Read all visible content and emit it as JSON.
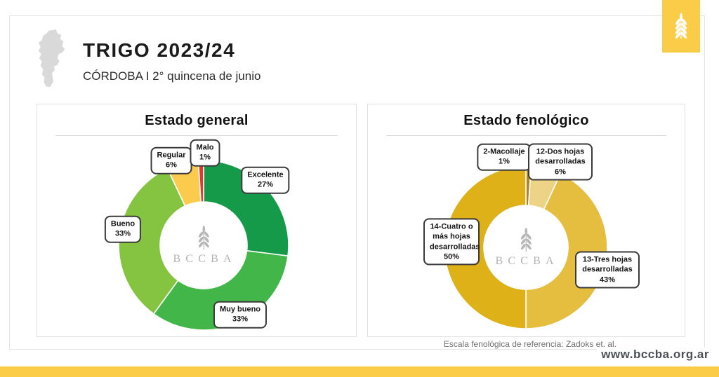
{
  "header": {
    "title": "TRIGO 2023/24",
    "subtitle": "CÓRDOBA I 2° quincena de junio",
    "region_shape": "cordoba-province-silhouette"
  },
  "branding": {
    "accent_yellow": "#FACC48",
    "watermark_text": "BCCBA",
    "logo_icon": "wheat-spike-icon"
  },
  "footer": {
    "reference_note": "Escala fenológica de referencia: Zadoks et. al.",
    "website": "www.bccba.org.ar"
  },
  "chart_data": [
    {
      "type": "pie",
      "variant": "donut",
      "title": "Estado general",
      "unit": "%",
      "start_angle_deg": -90,
      "direction": "clockwise",
      "legend": "callout-labels",
      "slices": [
        {
          "label": "Excelente",
          "value": 27,
          "pct": "27%",
          "color": "#149A49"
        },
        {
          "label": "Muy bueno",
          "value": 33,
          "pct": "33%",
          "color": "#43B649"
        },
        {
          "label": "Bueno",
          "value": 33,
          "pct": "33%",
          "color": "#84C441"
        },
        {
          "label": "Regular",
          "value": 6,
          "pct": "6%",
          "color": "#FBCB4D"
        },
        {
          "label": "Malo",
          "value": 1,
          "pct": "1%",
          "color": "#E0392E"
        }
      ]
    },
    {
      "type": "pie",
      "variant": "donut",
      "title": "Estado fenológico",
      "unit": "%",
      "start_angle_deg": -90,
      "direction": "clockwise",
      "legend": "callout-labels",
      "slices": [
        {
          "label": "2-Macollaje",
          "value": 1,
          "pct": "1%",
          "color": "#AD841F"
        },
        {
          "label": "12-Dos hojas desarrolladas",
          "value": 6,
          "pct": "6%",
          "color": "#EDD386"
        },
        {
          "label": "13-Tres hojas desarrolladas",
          "value": 43,
          "pct": "43%",
          "color": "#E5BD3F"
        },
        {
          "label": "14-Cuatro o más hojas desarrolladas",
          "value": 50,
          "pct": "50%",
          "color": "#DDB117"
        }
      ]
    }
  ]
}
